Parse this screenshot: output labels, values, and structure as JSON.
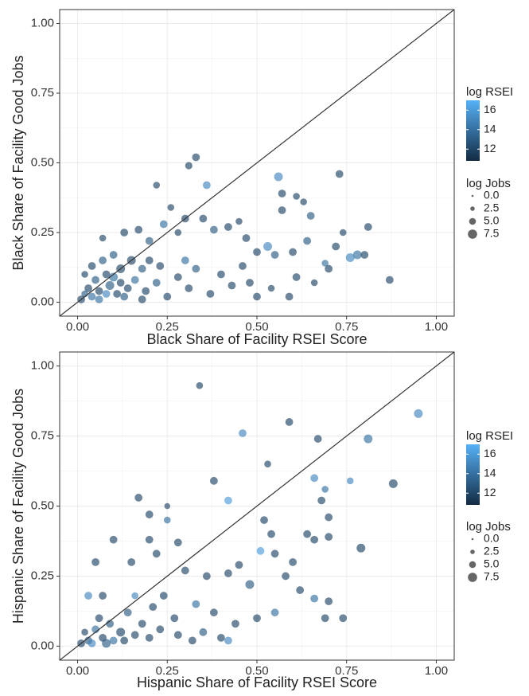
{
  "chart_data": [
    {
      "type": "scatter",
      "x_label": "Black Share of Facility RSEI Score",
      "y_label": "Black Share of Facility Good Jobs",
      "xlim": [
        -0.05,
        1.05
      ],
      "ylim": [
        -0.05,
        1.05
      ],
      "xticks": [
        {
          "value": 0,
          "label": "0.00"
        },
        {
          "value": 0.25,
          "label": "0.25"
        },
        {
          "value": 0.5,
          "label": "0.50"
        },
        {
          "value": 0.75,
          "label": "0.75"
        },
        {
          "value": 1,
          "label": "1.00"
        }
      ],
      "yticks": [
        {
          "value": 0,
          "label": "0.00"
        },
        {
          "value": 0.25,
          "label": "0.25"
        },
        {
          "value": 0.5,
          "label": "0.50"
        },
        {
          "value": 0.75,
          "label": "0.75"
        },
        {
          "value": 1,
          "label": "1.00"
        }
      ],
      "grid": true,
      "diagonal": true,
      "colorbar": {
        "title": "log RSEI",
        "lim": [
          10.8,
          17
        ],
        "ticks": [
          12,
          14,
          16
        ],
        "low": "#132B43",
        "high": "#56B1F7"
      },
      "size_legend": {
        "title": "log Jobs",
        "lim": [
          0,
          8
        ],
        "ticks": [
          {
            "value": 0,
            "label": "0.0"
          },
          {
            "value": 2.5,
            "label": "2.5"
          },
          {
            "value": 5,
            "label": "5.0"
          },
          {
            "value": 7.5,
            "label": "7.5"
          }
        ],
        "color": "#555555"
      },
      "x": [
        0.33,
        0.31,
        0.36,
        0.22,
        0.73,
        0.56,
        0.57,
        0.61,
        0.57,
        0.63,
        0.65,
        0.81,
        0.74,
        0.87,
        0.78,
        0.8,
        0.76,
        0.69,
        0.64,
        0.53,
        0.55,
        0.5,
        0.47,
        0.45,
        0.42,
        0.38,
        0.35,
        0.3,
        0.28,
        0.24,
        0.26,
        0.2,
        0.17,
        0.13,
        0.07,
        0.1,
        0.15,
        0.18,
        0.12,
        0.08,
        0.05,
        0.03,
        0.02,
        0.01,
        0.04,
        0.06,
        0.09,
        0.11,
        0.14,
        0.16,
        0.19,
        0.22,
        0.25,
        0.28,
        0.31,
        0.33,
        0.37,
        0.4,
        0.43,
        0.46,
        0.5,
        0.54,
        0.59,
        0.61,
        0.66,
        0.7,
        0.72,
        0.6,
        0.02,
        0.04,
        0.07,
        0.1,
        0.13,
        0.2,
        0.23,
        0.06,
        0.08,
        0.12,
        0.18,
        0.3,
        0.48
      ],
      "values": [
        0.52,
        0.49,
        0.42,
        0.42,
        0.46,
        0.45,
        0.39,
        0.38,
        0.33,
        0.36,
        0.31,
        0.27,
        0.25,
        0.08,
        0.17,
        0.17,
        0.16,
        0.14,
        0.22,
        0.2,
        0.17,
        0.18,
        0.23,
        0.29,
        0.27,
        0.26,
        0.3,
        0.3,
        0.25,
        0.28,
        0.34,
        0.22,
        0.26,
        0.25,
        0.23,
        0.17,
        0.15,
        0.12,
        0.12,
        0.1,
        0.08,
        0.05,
        0.03,
        0.01,
        0.02,
        0.04,
        0.06,
        0.03,
        0.05,
        0.08,
        0.04,
        0.07,
        0.02,
        0.09,
        0.05,
        0.12,
        0.03,
        0.1,
        0.06,
        0.13,
        0.02,
        0.05,
        0.02,
        0.09,
        0.07,
        0.12,
        0.2,
        0.18,
        0.1,
        0.13,
        0.15,
        0.09,
        0.02,
        0.15,
        0.13,
        0.01,
        0.03,
        0.07,
        0.01,
        0.15,
        0.07
      ],
      "color_values": [
        12,
        12,
        15,
        12,
        12,
        15,
        12,
        12,
        12,
        12,
        13,
        12,
        12,
        12,
        14,
        12,
        15,
        14,
        13,
        15,
        13,
        12,
        12,
        12,
        12,
        13,
        12,
        12,
        12,
        14,
        12,
        13,
        12,
        12,
        12,
        13,
        12,
        13,
        12,
        12,
        13,
        12,
        13,
        12,
        14,
        12,
        13,
        12,
        12,
        14,
        12,
        13,
        12,
        12,
        12,
        13,
        12,
        12,
        12,
        12,
        12,
        12,
        12,
        12,
        12,
        12,
        12,
        12,
        12,
        12,
        13,
        14,
        13,
        12,
        12,
        14,
        15,
        12,
        12,
        14,
        12
      ],
      "sizes": [
        6,
        5.5,
        6,
        5,
        6,
        7,
        6,
        5,
        6,
        5,
        6,
        6,
        5,
        6,
        7,
        6,
        7,
        5,
        6,
        7,
        6,
        6,
        6,
        5,
        6,
        6,
        6,
        6,
        5,
        6,
        5,
        6,
        6,
        6,
        5,
        6,
        7,
        6,
        7,
        6,
        6,
        6,
        5,
        6,
        6,
        6,
        7,
        6,
        6,
        6,
        6,
        6,
        6,
        6,
        6,
        6,
        6,
        6,
        6,
        6,
        6,
        5,
        6,
        6,
        5,
        6,
        6,
        6,
        5,
        6,
        6,
        7,
        6,
        6,
        6,
        6,
        6,
        6,
        6,
        6,
        6
      ]
    },
    {
      "type": "scatter",
      "x_label": "Hispanic Share of Facility RSEI Score",
      "y_label": "Hispanic Share of Facility Good Jobs",
      "xlim": [
        -0.05,
        1.05
      ],
      "ylim": [
        -0.05,
        1.05
      ],
      "xticks": [
        {
          "value": 0,
          "label": "0.00"
        },
        {
          "value": 0.25,
          "label": "0.25"
        },
        {
          "value": 0.5,
          "label": "0.50"
        },
        {
          "value": 0.75,
          "label": "0.75"
        },
        {
          "value": 1,
          "label": "1.00"
        }
      ],
      "yticks": [
        {
          "value": 0,
          "label": "0.00"
        },
        {
          "value": 0.25,
          "label": "0.25"
        },
        {
          "value": 0.5,
          "label": "0.50"
        },
        {
          "value": 0.75,
          "label": "0.75"
        },
        {
          "value": 1,
          "label": "1.00"
        }
      ],
      "grid": true,
      "diagonal": true,
      "colorbar": {
        "title": "log RSEI",
        "lim": [
          10.8,
          17
        ],
        "ticks": [
          12,
          14,
          16
        ],
        "low": "#132B43",
        "high": "#56B1F7"
      },
      "size_legend": {
        "title": "log Jobs",
        "lim": [
          0,
          8
        ],
        "ticks": [
          {
            "value": 0,
            "label": "0.0"
          },
          {
            "value": 2.5,
            "label": "2.5"
          },
          {
            "value": 5,
            "label": "5.0"
          },
          {
            "value": 7.5,
            "label": "7.5"
          }
        ],
        "color": "#555555"
      },
      "x": [
        0.34,
        0.95,
        0.59,
        0.46,
        0.67,
        0.81,
        0.66,
        0.76,
        0.88,
        0.38,
        0.69,
        0.53,
        0.42,
        0.17,
        0.25,
        0.52,
        0.54,
        0.68,
        0.7,
        0.64,
        0.79,
        0.51,
        0.55,
        0.6,
        0.66,
        0.7,
        0.2,
        0.25,
        0.2,
        0.28,
        0.22,
        0.1,
        0.05,
        0.15,
        0.36,
        0.3,
        0.45,
        0.42,
        0.48,
        0.58,
        0.62,
        0.66,
        0.7,
        0.74,
        0.69,
        0.38,
        0.33,
        0.27,
        0.24,
        0.21,
        0.18,
        0.14,
        0.12,
        0.09,
        0.07,
        0.05,
        0.03,
        0.01,
        0.02,
        0.04,
        0.06,
        0.08,
        0.1,
        0.13,
        0.16,
        0.2,
        0.23,
        0.28,
        0.32,
        0.35,
        0.4,
        0.44,
        0.5,
        0.55,
        0.42,
        0.03,
        0.07,
        0.16
      ],
      "values": [
        0.93,
        0.83,
        0.8,
        0.76,
        0.74,
        0.74,
        0.6,
        0.59,
        0.58,
        0.59,
        0.56,
        0.65,
        0.52,
        0.53,
        0.5,
        0.45,
        0.4,
        0.52,
        0.46,
        0.4,
        0.35,
        0.34,
        0.33,
        0.3,
        0.38,
        0.39,
        0.47,
        0.45,
        0.38,
        0.37,
        0.33,
        0.38,
        0.3,
        0.3,
        0.25,
        0.27,
        0.29,
        0.26,
        0.22,
        0.25,
        0.2,
        0.17,
        0.16,
        0.1,
        0.1,
        0.12,
        0.15,
        0.1,
        0.18,
        0.14,
        0.08,
        0.12,
        0.05,
        0.08,
        0.03,
        0.06,
        0.02,
        0.01,
        0.05,
        0.01,
        0.1,
        0.01,
        0.02,
        0.02,
        0.04,
        0.03,
        0.06,
        0.04,
        0.02,
        0.05,
        0.03,
        0.08,
        0.1,
        0.12,
        0.02,
        0.18,
        0.18,
        0.18
      ],
      "color_values": [
        12,
        15,
        12,
        15,
        12,
        14,
        15,
        15,
        12,
        12,
        14,
        12,
        16,
        12,
        12,
        12,
        12,
        12,
        12,
        12,
        12,
        16,
        12,
        12,
        12,
        12,
        12,
        14,
        12,
        12,
        12,
        12,
        12,
        12,
        12,
        12,
        12,
        12,
        13,
        12,
        12,
        14,
        12,
        12,
        12,
        12,
        14,
        12,
        12,
        12,
        12,
        13,
        12,
        13,
        12,
        14,
        13,
        12,
        12,
        15,
        12,
        13,
        14,
        12,
        12,
        12,
        12,
        12,
        12,
        13,
        12,
        12,
        12,
        14,
        15,
        15,
        12,
        15
      ],
      "sizes": [
        5,
        7,
        6,
        6,
        6,
        7,
        6,
        5,
        7,
        6,
        5,
        5,
        6,
        6,
        4,
        6,
        6,
        6,
        6,
        6,
        7,
        6,
        6,
        6,
        6,
        6,
        6,
        5,
        6,
        6,
        6,
        6,
        6,
        6,
        6,
        6,
        6,
        6,
        7,
        6,
        6,
        6,
        6,
        6,
        6,
        6,
        6,
        6,
        6,
        6,
        6,
        6,
        7,
        6,
        6,
        6,
        6,
        6,
        5,
        6,
        6,
        7,
        6,
        6,
        6,
        6,
        6,
        6,
        6,
        6,
        6,
        6,
        6,
        6,
        6,
        6,
        6,
        5
      ]
    }
  ]
}
